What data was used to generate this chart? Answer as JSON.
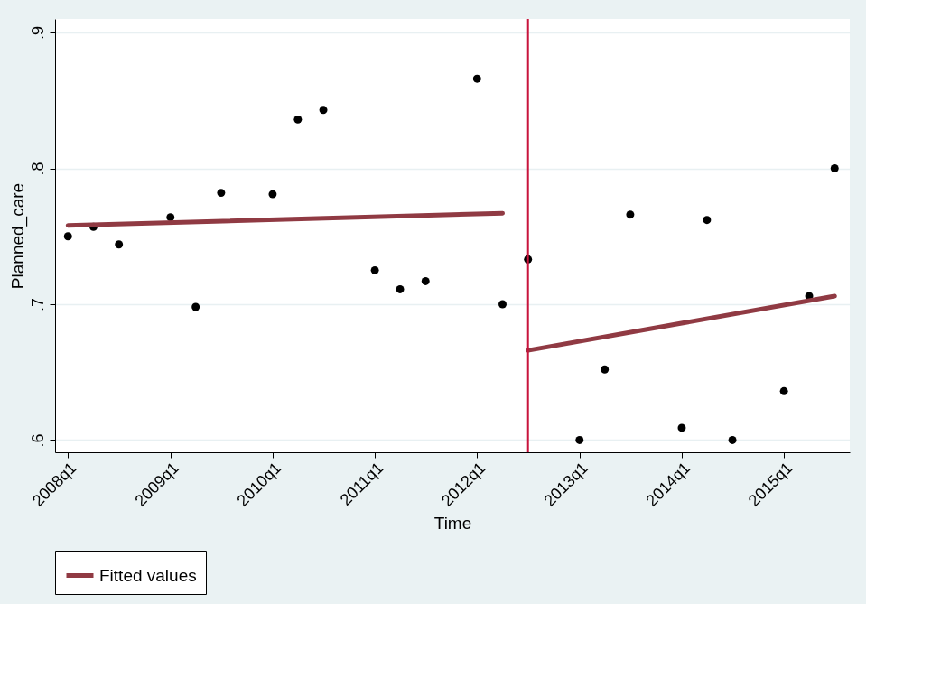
{
  "chart_data": {
    "type": "scatter",
    "xlabel": "Time",
    "ylabel": "Planned_care",
    "x": [
      "2008-01",
      "2008-04",
      "2008-07",
      "2009-01",
      "2009-04",
      "2009-07",
      "2010-01",
      "2010-04",
      "2010-07",
      "2011-01",
      "2011-04",
      "2011-07",
      "2012-01",
      "2012-04",
      "2012-07",
      "2013-01",
      "2013-04",
      "2013-07",
      "2014-01",
      "2014-04",
      "2014-07",
      "2015-01",
      "2015-04",
      "2015-07"
    ],
    "series": [
      {
        "color": "#000000",
        "marker": "circle",
        "values": [
          0.75,
          0.757,
          0.744,
          0.764,
          0.698,
          0.782,
          0.781,
          0.836,
          0.843,
          0.725,
          0.711,
          0.717,
          0.866,
          0.7,
          0.733,
          0.6,
          0.652,
          0.766,
          0.609,
          0.762,
          0.6,
          0.636,
          0.706,
          0.8
        ]
      },
      {
        "type": "line",
        "name": "Fitted values",
        "color": "#903a43",
        "marker": "none",
        "line_style": "solid",
        "x": [
          "2008-01",
          "2012-04",
          "2012-05-15",
          "2012-07",
          "2015-07"
        ],
        "values": [
          0.758,
          0.767,
          null,
          0.666,
          0.706
        ]
      }
    ],
    "xlim": [
      "2007-11-16",
      "2015-08-24"
    ],
    "xticks": [
      {
        "value": "2008-01",
        "label": "2008q1"
      },
      {
        "value": "2009-01",
        "label": "2009q1"
      },
      {
        "value": "2010-01",
        "label": "2010q1"
      },
      {
        "value": "2011-01",
        "label": "2011q1"
      },
      {
        "value": "2012-01",
        "label": "2012q1"
      },
      {
        "value": "2013-01",
        "label": "2013q1"
      },
      {
        "value": "2014-01",
        "label": "2014q1"
      },
      {
        "value": "2015-01",
        "label": "2015q1"
      }
    ],
    "ylim": [
      0.591,
      0.91
    ],
    "yticks": [
      {
        "value": 0.6,
        "label": ".6"
      },
      {
        "value": 0.7,
        "label": ".7"
      },
      {
        "value": 0.8,
        "label": ".8"
      },
      {
        "value": 0.9,
        "label": ".9"
      }
    ],
    "ref_lines": [
      {
        "axis": "x",
        "value": "2012-07",
        "color": "#c8143c"
      }
    ],
    "grid": "y",
    "legend": "bottom"
  }
}
